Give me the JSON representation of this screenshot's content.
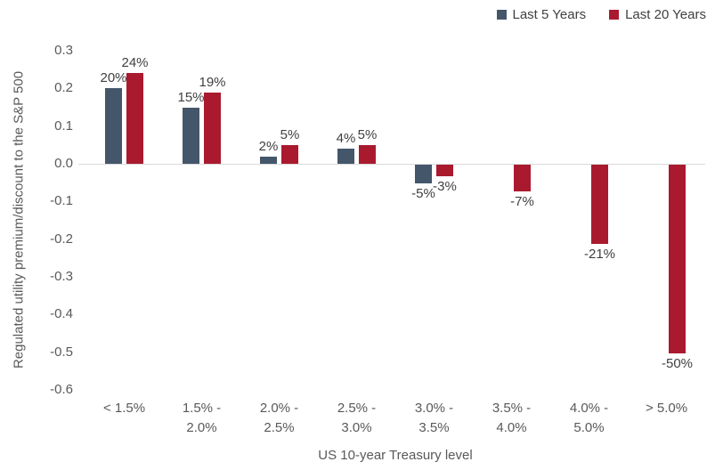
{
  "chart_data": {
    "type": "bar",
    "title": "",
    "xlabel": "US 10-year Treasury level",
    "ylabel": "Regulated utility premium/discount to the S&P 500",
    "categories": [
      "< 1.5%",
      "1.5% -\n2.0%",
      "2.0% -\n2.5%",
      "2.5% -\n3.0%",
      "3.0% -\n3.5%",
      "3.5% -\n4.0%",
      "4.0% -\n5.0%",
      "> 5.0%"
    ],
    "series": [
      {
        "name": "Last 5 Years",
        "color": "#44566A",
        "values": [
          0.2,
          0.15,
          0.02,
          0.04,
          -0.05,
          null,
          null,
          null
        ],
        "labels": [
          "20%",
          "15%",
          "2%",
          "4%",
          "-5%",
          null,
          null,
          null
        ]
      },
      {
        "name": "Last 20 Years",
        "color": "#AA1A2F",
        "values": [
          0.24,
          0.19,
          0.05,
          0.05,
          -0.03,
          -0.07,
          -0.21,
          -0.5
        ],
        "labels": [
          "24%",
          "19%",
          "5%",
          "5%",
          "-3%",
          "-7%",
          "-21%",
          "-50%"
        ]
      }
    ],
    "y_ticks": [
      "0.3",
      "0.2",
      "0.1",
      "0.0",
      "-0.1",
      "-0.2",
      "-0.3",
      "-0.4",
      "-0.5",
      "-0.6"
    ],
    "ylim": [
      -0.6,
      0.3
    ],
    "grid": false,
    "legend_position": "top-right",
    "axis_line_color": "#D9D9D9",
    "axis_text_color": "#595959",
    "label_text_color": "#404040"
  }
}
